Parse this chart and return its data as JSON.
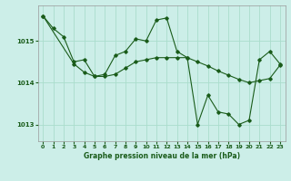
{
  "title": "Graphe pression niveau de la mer (hPa)",
  "background_color": "#cceee8",
  "grid_color": "#aaddcc",
  "line_color": "#1a5c1a",
  "xlim": [
    -0.5,
    23.5
  ],
  "ylim": [
    1012.6,
    1015.85
  ],
  "yticks": [
    1013,
    1014,
    1015
  ],
  "xticks": [
    0,
    1,
    2,
    3,
    4,
    5,
    6,
    7,
    8,
    9,
    10,
    11,
    12,
    13,
    14,
    15,
    16,
    17,
    18,
    19,
    20,
    21,
    22,
    23
  ],
  "series1": {
    "x": [
      0,
      1,
      2,
      3,
      4,
      5,
      6,
      7,
      8,
      9,
      10,
      11,
      12,
      13,
      14,
      15,
      16,
      17,
      18,
      19,
      20,
      21,
      22,
      23
    ],
    "y": [
      1015.6,
      1015.3,
      1015.1,
      1014.5,
      1014.55,
      1014.15,
      1014.2,
      1014.65,
      1014.75,
      1015.05,
      1015.0,
      1015.5,
      1015.55,
      1014.75,
      1014.6,
      1013.0,
      1013.7,
      1013.3,
      1013.25,
      1013.0,
      1013.1,
      1014.55,
      1014.75,
      1014.45
    ]
  },
  "series2": {
    "x": [
      0,
      3,
      4,
      5,
      6,
      7,
      8,
      9,
      10,
      11,
      12,
      13,
      14,
      15,
      16,
      17,
      18,
      19,
      20,
      21,
      22,
      23
    ],
    "y": [
      1015.6,
      1014.45,
      1014.25,
      1014.15,
      1014.15,
      1014.2,
      1014.35,
      1014.5,
      1014.55,
      1014.6,
      1014.6,
      1014.6,
      1014.6,
      1014.5,
      1014.4,
      1014.28,
      1014.18,
      1014.08,
      1014.0,
      1014.05,
      1014.1,
      1014.42
    ]
  }
}
